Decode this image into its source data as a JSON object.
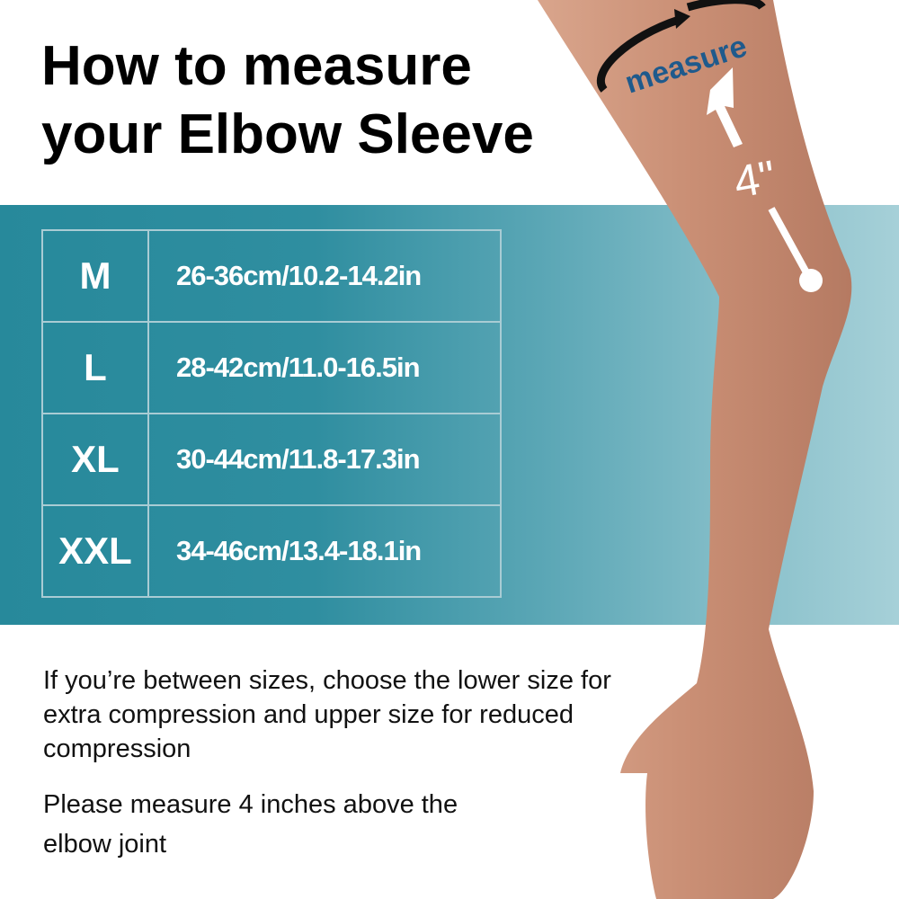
{
  "title_line1": "How to measure",
  "title_line2": "your Elbow Sleeve",
  "size_table": [
    {
      "size": "M",
      "range": "26-36cm/10.2-14.2in"
    },
    {
      "size": "L",
      "range": "28-42cm/11.0-16.5in"
    },
    {
      "size": "XL",
      "range": "30-44cm/11.8-17.3in"
    },
    {
      "size": "XXL",
      "range": "34-46cm/13.4-18.1in"
    }
  ],
  "illustration": {
    "measure_label": "measure",
    "distance_label": "4\""
  },
  "notes": {
    "between_sizes": "If you’re between sizes, choose the lower size for extra compression and upper size for reduced compression",
    "measure_instruction": "Please measure 4 inches above the elbow joint"
  },
  "colors": {
    "band_dark": "#27899b",
    "band_light": "#a6d0d8",
    "measure_text": "#1f5a8c"
  }
}
